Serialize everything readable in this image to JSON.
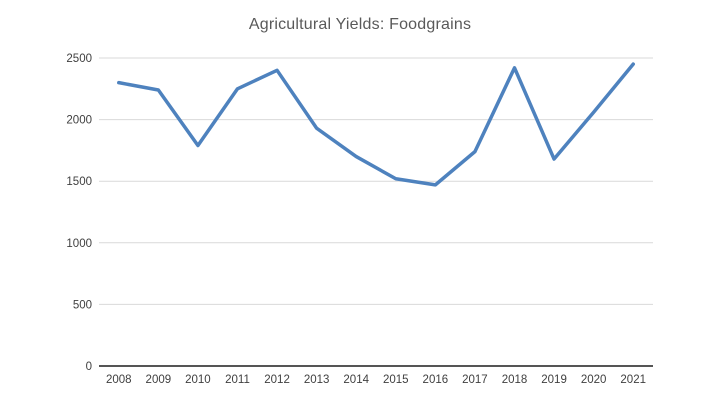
{
  "chart_data": {
    "type": "line",
    "title": "Agricultural Yields: Foodgrains",
    "categories": [
      "2008",
      "2009",
      "2010",
      "2011",
      "2012",
      "2013",
      "2014",
      "2015",
      "2016",
      "2017",
      "2018",
      "2019",
      "2020",
      "2021"
    ],
    "values": [
      2300,
      2240,
      1790,
      2250,
      2400,
      1930,
      1700,
      1520,
      1470,
      1740,
      2420,
      1680,
      2060,
      2450
    ],
    "xlabel": "",
    "ylabel": "",
    "ylim": [
      0,
      2500
    ],
    "ytick_step": 500,
    "yticks": [
      0,
      500,
      1000,
      1500,
      2000,
      2500
    ],
    "grid": true,
    "legend": false,
    "line_color": "#4e82be",
    "gridline_color": "#d9d9d9",
    "axis_color": "#555555",
    "label_color": "#404040",
    "title_color": "#595959"
  }
}
